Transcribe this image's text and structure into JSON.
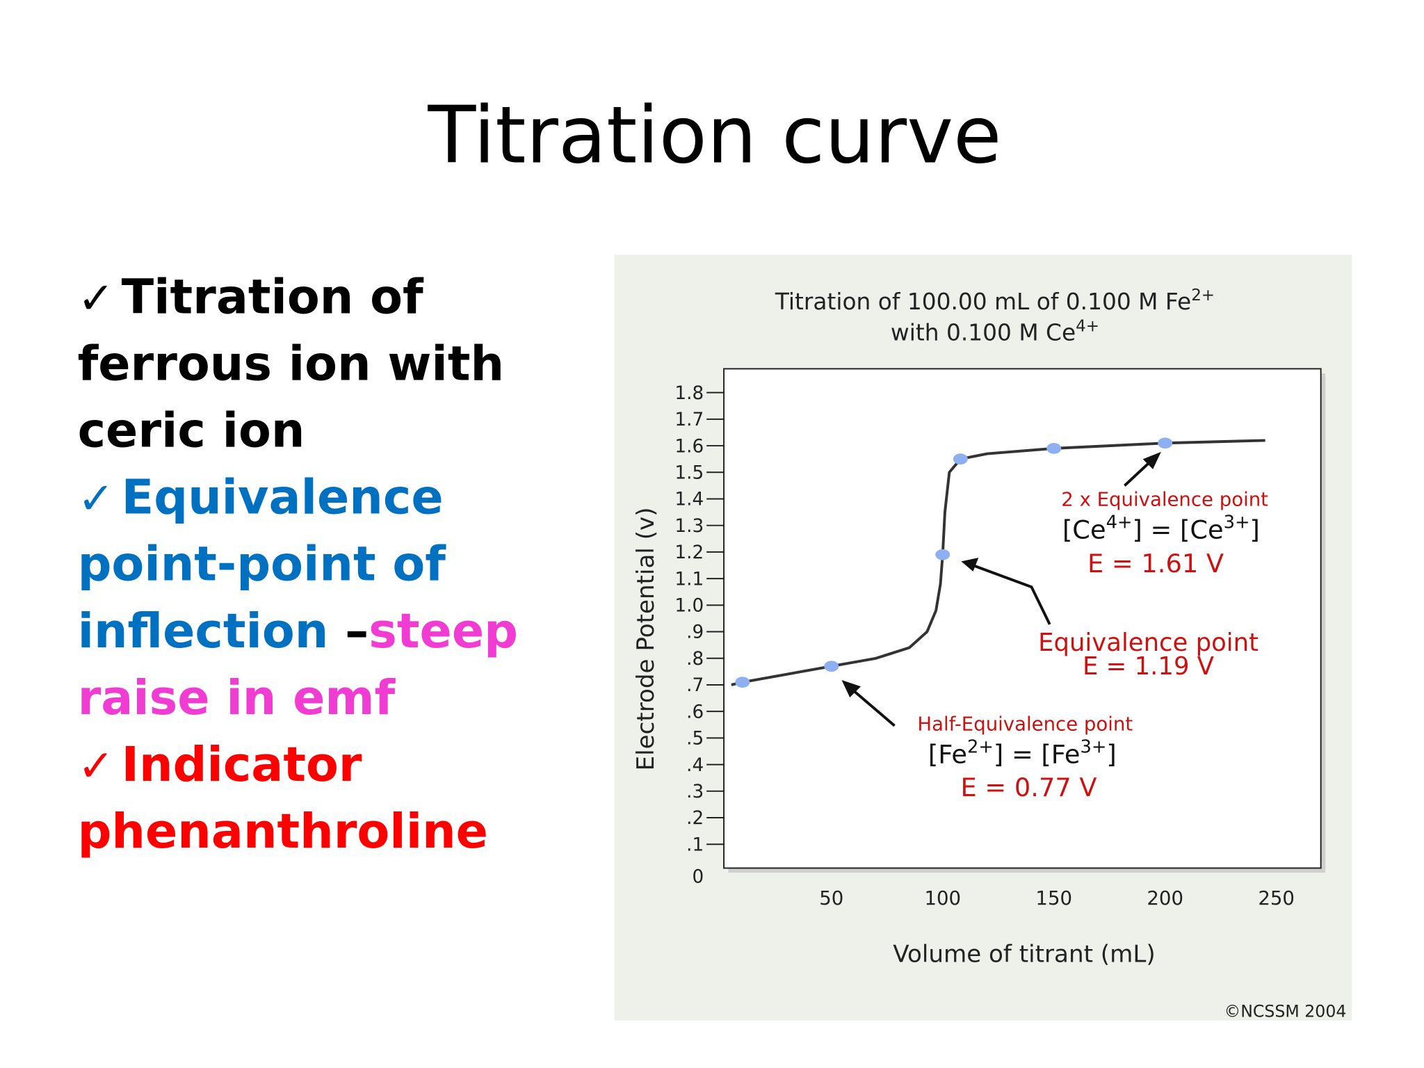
{
  "slide": {
    "title": "Titration curve",
    "bullets": [
      {
        "mark": {
          "text": "✓",
          "color": "#000000"
        },
        "lines": [
          [
            {
              "text": "Titration of",
              "color": "#000000"
            }
          ],
          [
            {
              "text": "ferrous ion with",
              "color": "#000000"
            }
          ],
          [
            {
              "text": "ceric ion",
              "color": "#000000"
            }
          ]
        ]
      },
      {
        "mark": {
          "text": "✓",
          "color": "#0070c0"
        },
        "lines": [
          [
            {
              "text": "Equivalence",
              "color": "#0070c0"
            }
          ],
          [
            {
              "text": "point-point of",
              "color": "#0070c0"
            }
          ],
          [
            {
              "text": "inflection ",
              "color": "#0070c0"
            },
            {
              "text": "–",
              "color": "#000000"
            },
            {
              "text": "steep",
              "color": "#f03cd2"
            }
          ],
          [
            {
              "text": "raise in emf",
              "color": "#f03cd2"
            }
          ]
        ]
      },
      {
        "mark": {
          "text": "✓",
          "color": "#ff0000"
        },
        "lines": [
          [
            {
              "text": "Indicator",
              "color": "#ff0000"
            }
          ],
          [
            {
              "text": "phenanthroline",
              "color": "#ff0000"
            }
          ]
        ]
      }
    ]
  },
  "chart_data": {
    "type": "line",
    "title": [
      [
        {
          "text": "Titration of 100.00 mL of 0.100 M  Fe"
        },
        {
          "sup": "2+"
        }
      ],
      [
        {
          "text": "with 0.100 M  Ce"
        },
        {
          "sup": "4+"
        }
      ]
    ],
    "x_label": "Volume of titrant (mL)",
    "y_label": "Electrode Potential (v)",
    "xlim": [
      0,
      270
    ],
    "ylim": [
      0,
      1.9
    ],
    "xticks": [
      50,
      100,
      150,
      200,
      250
    ],
    "yticks": [
      0,
      {
        "value": 0.1,
        "label": ".1"
      },
      {
        "value": 0.2,
        "label": ".2"
      },
      {
        "value": 0.3,
        "label": ".3"
      },
      {
        "value": 0.4,
        "label": ".4"
      },
      {
        "value": 0.5,
        "label": ".5"
      },
      {
        "value": 0.6,
        "label": ".6"
      },
      {
        "value": 0.7,
        "label": ".7"
      },
      {
        "value": 0.8,
        "label": ".8"
      },
      {
        "value": 0.9,
        "label": ".9"
      },
      {
        "value": 1,
        "label": "1.0"
      },
      1.1,
      1.2,
      1.3,
      1.4,
      1.5,
      1.6,
      1.7,
      1.8
    ],
    "grid": false,
    "series": [
      {
        "color": "#333333",
        "x": [
          5,
          10,
          30,
          50,
          70,
          85,
          93,
          97,
          99,
          100,
          101,
          103,
          108,
          120,
          150,
          200,
          245
        ],
        "values": [
          0.7,
          0.71,
          0.74,
          0.77,
          0.8,
          0.84,
          0.9,
          0.98,
          1.08,
          1.19,
          1.35,
          1.5,
          1.55,
          1.57,
          1.59,
          1.61,
          1.62
        ]
      },
      {
        "color": "#8fb0f0",
        "x": [
          10,
          50,
          100,
          108,
          150,
          200
        ],
        "values": [
          0.71,
          0.77,
          1.19,
          1.55,
          1.59,
          1.61
        ]
      }
    ],
    "annotations": [
      {
        "color": "#cc1111",
        "size": 21,
        "parts": [
          {
            "text": "2 x Equivalence point"
          }
        ]
      },
      {
        "color": "#111111",
        "size": 28,
        "parts": [
          {
            "text": "[Ce"
          },
          {
            "sup": "4+"
          },
          {
            "text": "] = [Ce"
          },
          {
            "sup": "3+"
          },
          {
            "text": "]"
          }
        ]
      },
      {
        "color": "#cc1111",
        "size": 28,
        "parts": [
          {
            "text": "E = 1.61 V"
          }
        ]
      },
      {
        "color": "#cc1111",
        "size": 27,
        "parts": [
          {
            "text": "Equivalence point"
          }
        ]
      },
      {
        "color": "#cc1111",
        "size": 27,
        "parts": [
          {
            "text": "E = 1.19 V"
          }
        ]
      },
      {
        "color": "#cc1111",
        "size": 21,
        "parts": [
          {
            "text": "Half-Equivalence point"
          }
        ]
      },
      {
        "color": "#111111",
        "size": 28,
        "parts": [
          {
            "text": "[Fe"
          },
          {
            "sup": "2+"
          },
          {
            "text": "] = [Fe"
          },
          {
            "sup": "3+"
          },
          {
            "text": "]"
          }
        ]
      },
      {
        "color": "#cc1111",
        "size": 28,
        "parts": [
          {
            "text": "E = 0.77 V"
          }
        ]
      }
    ],
    "credit": "©NCSSM 2004"
  }
}
